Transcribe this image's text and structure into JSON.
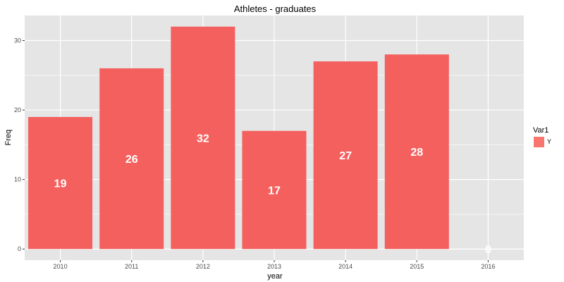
{
  "chart_data": {
    "type": "bar",
    "title": "Athletes - graduates",
    "xlabel": "year",
    "ylabel": "Freq",
    "categories": [
      "2010",
      "2011",
      "2012",
      "2013",
      "2014",
      "2015",
      "2016"
    ],
    "series": [
      {
        "name": "Y",
        "values": [
          19,
          26,
          32,
          17,
          27,
          28,
          0
        ]
      }
    ],
    "data_labels": [
      "19",
      "26",
      "32",
      "17",
      "27",
      "28",
      "0"
    ],
    "ylim": [
      -1.6,
      33.6
    ],
    "yticks": [
      0,
      10,
      20,
      30
    ],
    "ytick_labels": [
      "0",
      "10",
      "20",
      "30"
    ],
    "grid": true,
    "legend": {
      "title": "Var1",
      "position": "right",
      "entries": [
        {
          "label": "Y",
          "color": "#F8766D"
        }
      ]
    },
    "colors": {
      "bar": "#F4605E",
      "panel_background": "#E5E5E5",
      "grid": "#FFFFFF",
      "data_label": "#FFFFFF"
    }
  }
}
